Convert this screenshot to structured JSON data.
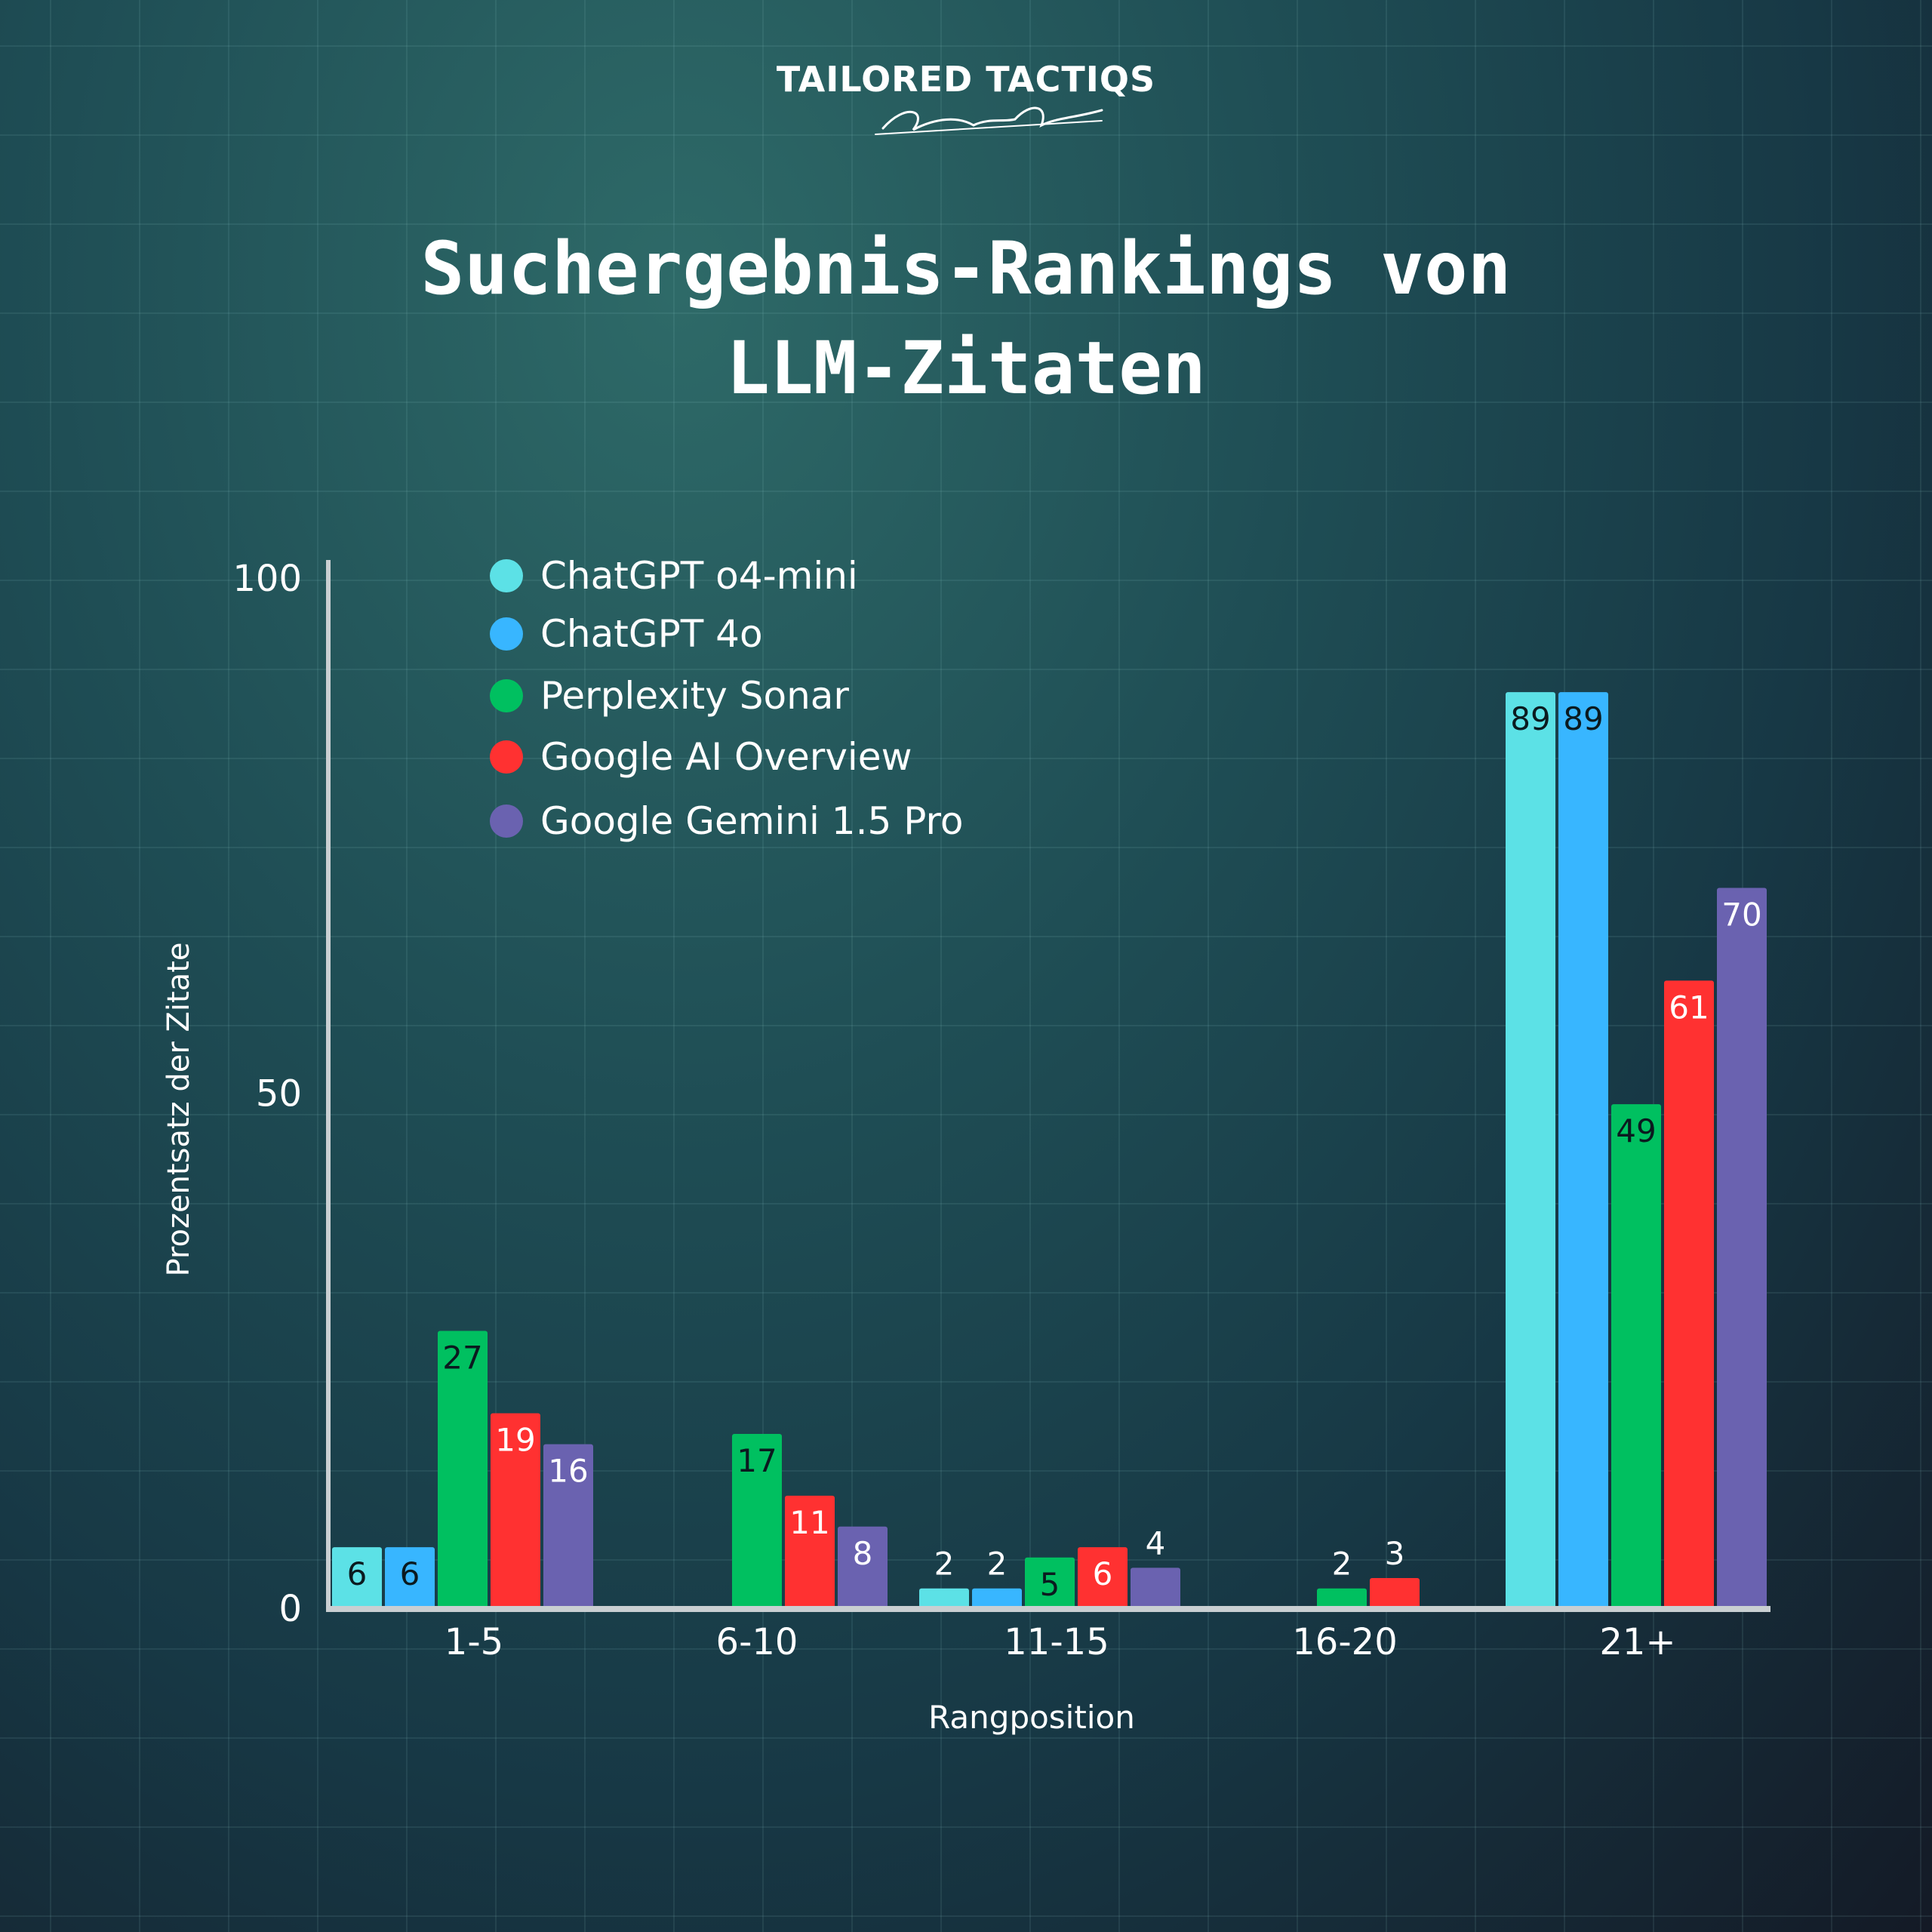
{
  "brand": {
    "name": "TAILORED TACTIQS",
    "signature": "Dennis Quast"
  },
  "title_lines": [
    "Suchergebnis-Rankings von",
    "LLM-Zitaten"
  ],
  "colors": {
    "series": [
      "#5ce1e6",
      "#38b6ff",
      "#00c060",
      "#ff3131",
      "#6a62b0"
    ],
    "axis": "#c9cfd2",
    "label_dark": "#0b1a1f",
    "label_light": "#ffffff"
  },
  "chart_data": {
    "type": "bar",
    "title": "Suchergebnis-Rankings von LLM-Zitaten",
    "xlabel": "Rangposition",
    "ylabel": "Prozentsatz der Zitate",
    "ylim": [
      0,
      100
    ],
    "yticks": [
      "0",
      "50",
      "100"
    ],
    "grid": false,
    "legend": "top-left",
    "categories": [
      "1-5",
      "6-10",
      "11-15",
      "16-20",
      "21+"
    ],
    "series": [
      {
        "name": "ChatGPT o4-mini",
        "values": [
          6,
          0,
          2,
          0,
          89
        ]
      },
      {
        "name": "ChatGPT 4o",
        "values": [
          6,
          0,
          2,
          0,
          89
        ]
      },
      {
        "name": "Perplexity Sonar",
        "values": [
          27,
          17,
          5,
          2,
          49
        ]
      },
      {
        "name": "Google AI Overview",
        "values": [
          19,
          11,
          6,
          3,
          61
        ]
      },
      {
        "name": "Google Gemini 1.5 Pro",
        "values": [
          16,
          8,
          4,
          0,
          70
        ]
      }
    ]
  }
}
